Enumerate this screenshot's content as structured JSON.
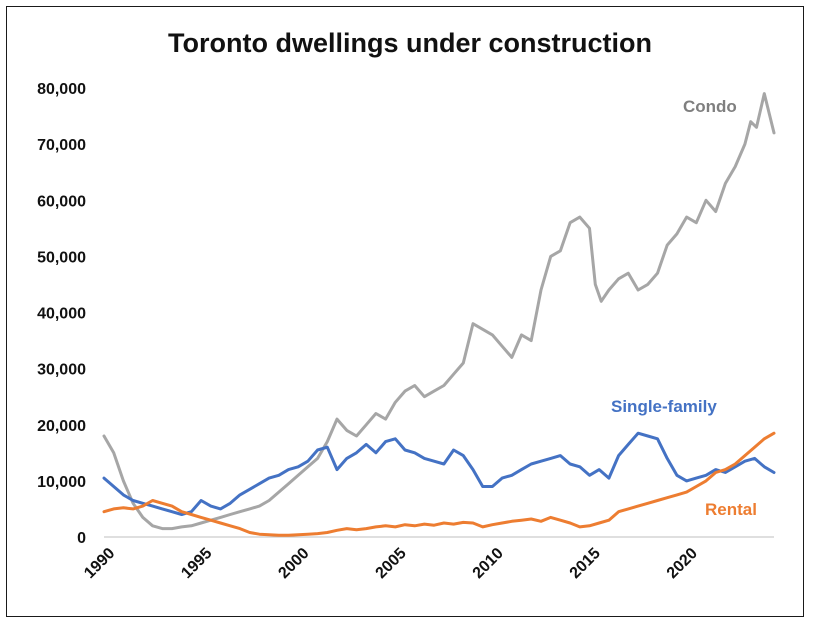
{
  "chart_data": {
    "type": "line",
    "title": "Toronto dwellings under construction",
    "xlabel": "",
    "ylabel": "",
    "xlim": [
      1990,
      2024.5
    ],
    "ylim": [
      0,
      80000
    ],
    "grid": false,
    "legend": "direct-labels",
    "y_ticks": [
      "0",
      "10,000",
      "20,000",
      "30,000",
      "40,000",
      "50,000",
      "60,000",
      "70,000",
      "80,000"
    ],
    "y_tick_values": [
      0,
      10000,
      20000,
      30000,
      40000,
      50000,
      60000,
      70000,
      80000
    ],
    "x_ticks": [
      "1990",
      "1995",
      "2000",
      "2005",
      "2010",
      "2015",
      "2020"
    ],
    "x_tick_values": [
      1990,
      1995,
      2000,
      2005,
      2010,
      2015,
      2020
    ],
    "series": [
      {
        "name": "Condo",
        "color": "#a6a6a6",
        "x": [
          1990,
          1990.5,
          1991,
          1991.5,
          1992,
          1992.5,
          1993,
          1993.5,
          1994,
          1994.5,
          1995,
          1995.5,
          1996,
          1996.5,
          1997,
          1997.5,
          1998,
          1998.5,
          1999,
          1999.5,
          2000,
          2000.5,
          2001,
          2001.5,
          2002,
          2002.5,
          2003,
          2003.5,
          2004,
          2004.5,
          2005,
          2005.5,
          2006,
          2006.5,
          2007,
          2007.5,
          2008,
          2008.5,
          2009,
          2009.5,
          2010,
          2010.5,
          2011,
          2011.5,
          2012,
          2012.5,
          2013,
          2013.5,
          2014,
          2014.5,
          2015,
          2015.3,
          2015.6,
          2016,
          2016.5,
          2017,
          2017.5,
          2018,
          2018.5,
          2019,
          2019.5,
          2020,
          2020.5,
          2021,
          2021.5,
          2022,
          2022.5,
          2023,
          2023.3,
          2023.6,
          2024,
          2024.5
        ],
        "values": [
          18000,
          15000,
          10000,
          6000,
          3500,
          2000,
          1500,
          1500,
          1800,
          2000,
          2500,
          3000,
          3500,
          4000,
          4500,
          5000,
          5500,
          6500,
          8000,
          9500,
          11000,
          12500,
          14000,
          17000,
          21000,
          19000,
          18000,
          20000,
          22000,
          21000,
          24000,
          26000,
          27000,
          25000,
          26000,
          27000,
          29000,
          31000,
          38000,
          37000,
          36000,
          34000,
          32000,
          36000,
          35000,
          44000,
          50000,
          51000,
          56000,
          57000,
          55000,
          45000,
          42000,
          44000,
          46000,
          47000,
          44000,
          45000,
          47000,
          52000,
          54000,
          57000,
          56000,
          60000,
          58000,
          63000,
          66000,
          70000,
          74000,
          73000,
          79000,
          72000
        ]
      },
      {
        "name": "Single-family",
        "color": "#4472c4",
        "x": [
          1990,
          1990.5,
          1991,
          1991.5,
          1992,
          1992.5,
          1993,
          1993.5,
          1994,
          1994.5,
          1995,
          1995.5,
          1996,
          1996.5,
          1997,
          1997.5,
          1998,
          1998.5,
          1999,
          1999.5,
          2000,
          2000.5,
          2001,
          2001.5,
          2002,
          2002.5,
          2003,
          2003.5,
          2004,
          2004.5,
          2005,
          2005.5,
          2006,
          2006.5,
          2007,
          2007.5,
          2008,
          2008.5,
          2009,
          2009.5,
          2010,
          2010.5,
          2011,
          2011.5,
          2012,
          2012.5,
          2013,
          2013.5,
          2014,
          2014.5,
          2015,
          2015.5,
          2016,
          2016.5,
          2017,
          2017.5,
          2018,
          2018.5,
          2019,
          2019.5,
          2020,
          2020.5,
          2021,
          2021.5,
          2022,
          2022.5,
          2023,
          2023.5,
          2024,
          2024.5
        ],
        "values": [
          10500,
          9000,
          7500,
          6500,
          6000,
          5500,
          5000,
          4500,
          4000,
          4500,
          6500,
          5500,
          5000,
          6000,
          7500,
          8500,
          9500,
          10500,
          11000,
          12000,
          12500,
          13500,
          15500,
          16000,
          12000,
          14000,
          15000,
          16500,
          15000,
          17000,
          17500,
          15500,
          15000,
          14000,
          13500,
          13000,
          15500,
          14500,
          12000,
          9000,
          9000,
          10500,
          11000,
          12000,
          13000,
          13500,
          14000,
          14500,
          13000,
          12500,
          11000,
          12000,
          10500,
          14500,
          16500,
          18500,
          18000,
          17500,
          14000,
          11000,
          10000,
          10500,
          11000,
          12000,
          11500,
          12500,
          13500,
          14000,
          12500,
          11500
        ]
      },
      {
        "name": "Rental",
        "color": "#ed7d31",
        "x": [
          1990,
          1990.5,
          1991,
          1991.5,
          1992,
          1992.5,
          1993,
          1993.5,
          1994,
          1994.5,
          1995,
          1995.5,
          1996,
          1996.5,
          1997,
          1997.5,
          1998,
          1998.5,
          1999,
          1999.5,
          2000,
          2000.5,
          2001,
          2001.5,
          2002,
          2002.5,
          2003,
          2003.5,
          2004,
          2004.5,
          2005,
          2005.5,
          2006,
          2006.5,
          2007,
          2007.5,
          2008,
          2008.5,
          2009,
          2009.5,
          2010,
          2010.5,
          2011,
          2011.5,
          2012,
          2012.5,
          2013,
          2013.5,
          2014,
          2014.5,
          2015,
          2015.5,
          2016,
          2016.5,
          2017,
          2017.5,
          2018,
          2018.5,
          2019,
          2019.5,
          2020,
          2020.5,
          2021,
          2021.5,
          2022,
          2022.5,
          2023,
          2023.5,
          2024,
          2024.5
        ],
        "values": [
          4500,
          5000,
          5200,
          5000,
          5500,
          6500,
          6000,
          5500,
          4500,
          4000,
          3500,
          3000,
          2500,
          2000,
          1500,
          800,
          500,
          400,
          300,
          300,
          400,
          500,
          600,
          800,
          1200,
          1500,
          1300,
          1500,
          1800,
          2000,
          1800,
          2200,
          2000,
          2300,
          2100,
          2500,
          2300,
          2600,
          2500,
          1800,
          2200,
          2500,
          2800,
          3000,
          3200,
          2800,
          3500,
          3000,
          2500,
          1800,
          2000,
          2500,
          3000,
          4500,
          5000,
          5500,
          6000,
          6500,
          7000,
          7500,
          8000,
          9000,
          10000,
          11500,
          12000,
          13000,
          14500,
          16000,
          17500,
          18500
        ]
      }
    ]
  }
}
